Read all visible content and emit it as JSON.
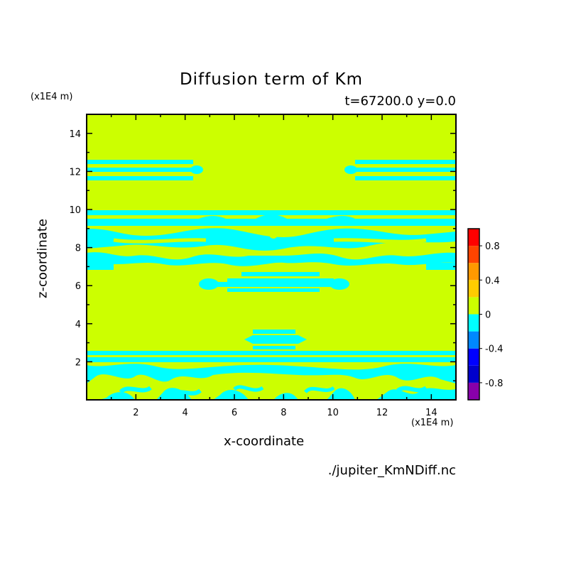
{
  "figure": {
    "title": "Diffusion term of Km",
    "subtitle": "t=67200.0 y=0.0",
    "unit_top_left": "(x1E4 m)",
    "unit_bottom_right": "(x1E4 m)",
    "file_label": "./jupiter_KmNDiff.nc"
  },
  "chart_data": {
    "type": "heatmap",
    "title": "Diffusion term of Km",
    "subtitle": "t=67200.0 y=0.0",
    "xlabel": "x-coordinate",
    "ylabel": "z-coordinate",
    "xlim": [
      0,
      15
    ],
    "ylim": [
      0,
      15
    ],
    "xticks": [
      2,
      4,
      6,
      8,
      10,
      12,
      14
    ],
    "yticks": [
      2,
      4,
      6,
      8,
      10,
      12,
      14
    ],
    "grid": false,
    "colorbar": {
      "levels": [
        -1.0,
        -0.8,
        -0.6,
        -0.4,
        -0.2,
        0.0,
        0.2,
        0.4,
        0.6,
        0.8,
        1.0
      ],
      "colors": [
        "#8800aa",
        "#0000cc",
        "#0000ff",
        "#0088ff",
        "#00ffff",
        "#ccff00",
        "#ffcc00",
        "#ff9900",
        "#ff4400",
        "#ff0000",
        "#ffaaaa"
      ],
      "tick_labels": [
        "0.8",
        "0.4",
        "0",
        "-0.4",
        "-0.8"
      ],
      "tick_values": [
        0.8,
        0.4,
        0.0,
        -0.4,
        -0.8
      ]
    },
    "background_value_range": [
      0.0,
      0.2
    ],
    "feature_value_range": [
      -0.2,
      0.0
    ],
    "negative_features": [
      {
        "name": "upper band left",
        "x": [
          0.0,
          4.6
        ],
        "z": [
          11.6,
          12.4
        ]
      },
      {
        "name": "upper band right",
        "x": [
          10.6,
          15.0
        ],
        "z": [
          11.6,
          12.4
        ]
      },
      {
        "name": "mid layer",
        "x": [
          0.0,
          15.0
        ],
        "z": [
          6.8,
          9.8
        ]
      },
      {
        "name": "central lens",
        "x": [
          4.6,
          10.6
        ],
        "z": [
          5.8,
          6.6
        ]
      },
      {
        "name": "small lens",
        "x": [
          6.4,
          8.8
        ],
        "z": [
          2.8,
          3.6
        ]
      },
      {
        "name": "bottom layer",
        "x": [
          0.0,
          15.0
        ],
        "z": [
          0.0,
          2.6
        ]
      }
    ]
  }
}
